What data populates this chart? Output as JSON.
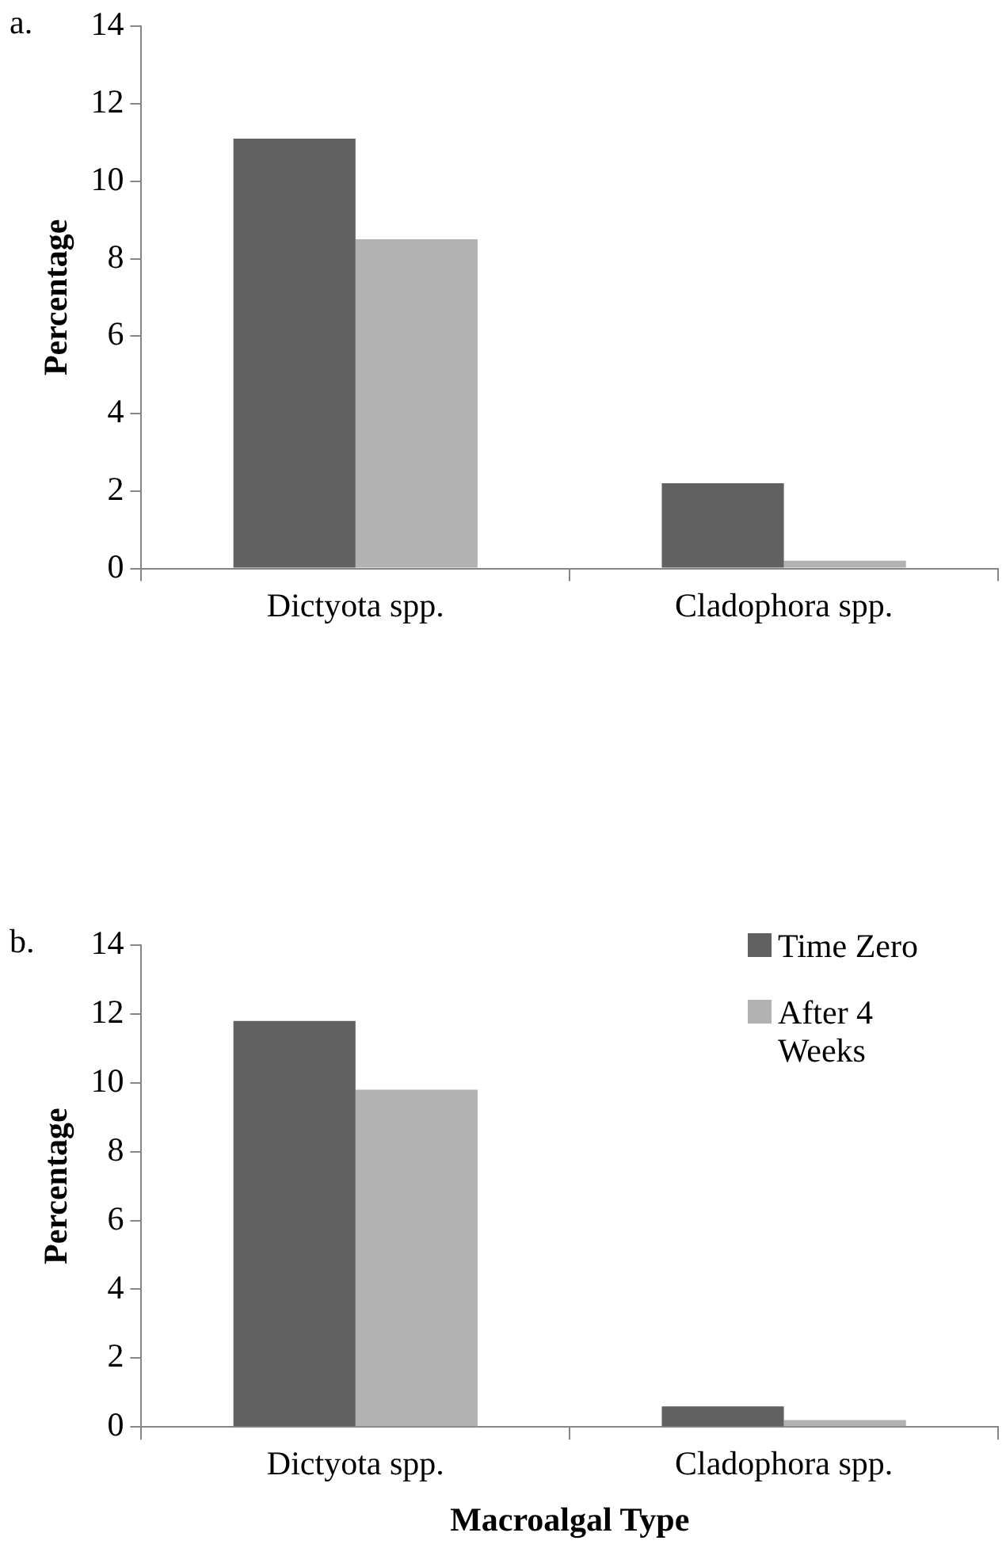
{
  "chart_data": [
    {
      "type": "bar",
      "annotations": [
        "a."
      ],
      "ylabel": "Percentage",
      "categories": [
        "Dictyota spp.",
        "Cladophora spp."
      ],
      "series": [
        {
          "color": "#616161",
          "values": [
            11.1,
            2.2
          ]
        },
        {
          "color": "#b2b2b2",
          "values": [
            8.5,
            0.2
          ]
        }
      ],
      "ylim": [
        0,
        14
      ],
      "yticks": [
        0,
        2,
        4,
        6,
        8,
        10,
        12,
        14
      ],
      "grid": false,
      "legend": false
    },
    {
      "type": "bar",
      "annotations": [
        "b."
      ],
      "ylabel": "Percentage",
      "xlabel": "Macroalgal Type",
      "categories": [
        "Dictyota spp.",
        "Cladophora spp."
      ],
      "series": [
        {
          "name": "Time Zero",
          "color": "#616161",
          "values": [
            11.8,
            0.6
          ]
        },
        {
          "name": "After 4 Weeks",
          "color": "#b2b2b2",
          "values": [
            9.8,
            0.2
          ]
        }
      ],
      "ylim": [
        0,
        14
      ],
      "yticks": [
        0,
        2,
        4,
        6,
        8,
        10,
        12,
        14
      ],
      "grid": false,
      "legend": "top right"
    }
  ]
}
